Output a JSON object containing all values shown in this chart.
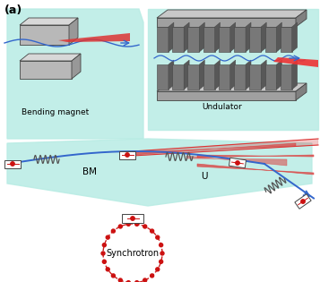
{
  "bg_color": "#ffffff",
  "teal_color": "#b8ece4",
  "blue_line_color": "#3366cc",
  "red_beam_color": "#dd4444",
  "magnet_dark": "#666666",
  "magnet_mid": "#999999",
  "magnet_light": "#cccccc",
  "synchrotron_circle_color": "#cc2222",
  "bm_label": "BM",
  "u_label": "U",
  "bending_magnet_label": "Bending magnet",
  "undulator_label": "Undulator",
  "synchrotron_label": "Synchrotron",
  "panel_label": "(a)"
}
